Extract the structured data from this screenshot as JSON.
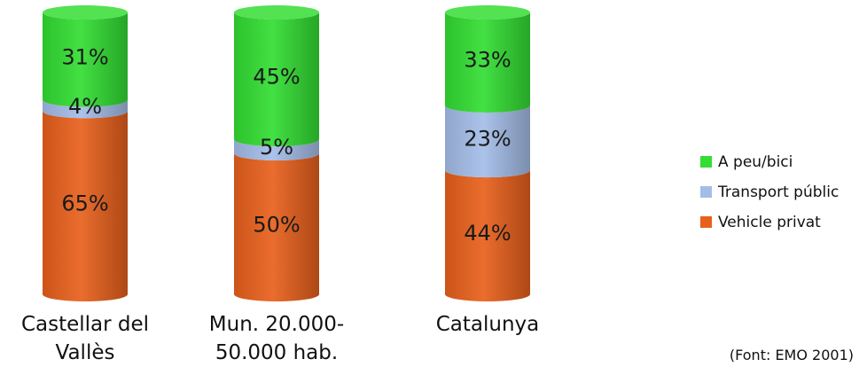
{
  "chart_data": {
    "type": "bar",
    "stacked": true,
    "style": "3d-cylinder",
    "categories": [
      [
        "Castellar del",
        "Vallès"
      ],
      [
        "Mun. 20.000-",
        "50.000 hab."
      ],
      [
        "Catalunya"
      ]
    ],
    "series": [
      {
        "name": "Vehicle privat",
        "values": [
          65,
          50,
          44
        ],
        "labels": [
          "65%",
          "50%",
          "44%"
        ],
        "color": "#E8601C"
      },
      {
        "name": "Transport públic",
        "values": [
          4,
          5,
          23
        ],
        "labels": [
          "4%",
          "5%",
          "23%"
        ],
        "color": "#A4BDE8"
      },
      {
        "name": "A peu/bici",
        "values": [
          31,
          45,
          33
        ],
        "labels": [
          "31%",
          "45%",
          "33%"
        ],
        "color": "#33DD33"
      }
    ],
    "legend_order": [
      "A peu/bici",
      "Transport públic",
      "Vehicle privat"
    ],
    "legend_position": "right",
    "ylim": [
      0,
      100
    ],
    "grid": false,
    "source": "(Font: EMO 2001)"
  }
}
